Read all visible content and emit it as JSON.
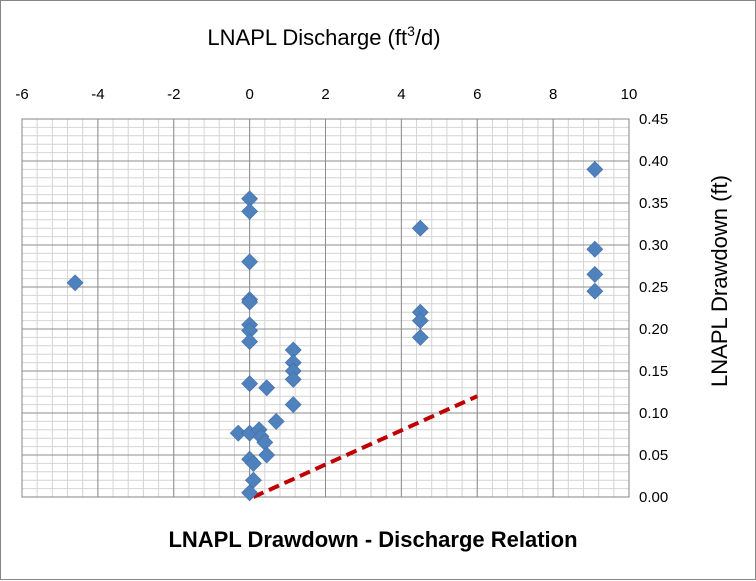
{
  "chart_data": {
    "type": "scatter",
    "title": "LNAPL Drawdown - Discharge Relation",
    "xlabel": "LNAPL Discharge (ft",
    "xlabel_sup": "3",
    "xlabel_tail": "/d)",
    "ylabel": "LNAPL Drawdown (ft)",
    "x_axis_position": "top",
    "y_axis_position": "right",
    "xlim": [
      -6,
      10
    ],
    "ylim": [
      0,
      0.45
    ],
    "x_ticks": [
      "-6",
      "-4",
      "-2",
      "0",
      "2",
      "4",
      "6",
      "8",
      "10"
    ],
    "y_ticks": [
      "0.00",
      "0.05",
      "0.10",
      "0.15",
      "0.20",
      "0.25",
      "0.30",
      "0.35",
      "0.40",
      "0.45"
    ],
    "grid": true,
    "legend": "none",
    "marker": "diamond",
    "marker_color": "#4f81bd",
    "trend_color": "#c00000",
    "series": [
      {
        "points": [
          [
            -4.6,
            0.255
          ],
          [
            0.0,
            0.355
          ],
          [
            0.0,
            0.34
          ],
          [
            0.0,
            0.28
          ],
          [
            0.0,
            0.235
          ],
          [
            0.0,
            0.232
          ],
          [
            0.0,
            0.205
          ],
          [
            0.0,
            0.198
          ],
          [
            0.0,
            0.185
          ],
          [
            0.0,
            0.135
          ],
          [
            -0.3,
            0.076
          ],
          [
            0.0,
            0.076
          ],
          [
            0.0,
            0.045
          ],
          [
            0.1,
            0.04
          ],
          [
            0.1,
            0.02
          ],
          [
            0.0,
            0.005
          ],
          [
            0.25,
            0.08
          ],
          [
            0.3,
            0.072
          ],
          [
            0.4,
            0.065
          ],
          [
            0.45,
            0.05
          ],
          [
            0.45,
            0.13
          ],
          [
            0.7,
            0.09
          ],
          [
            1.15,
            0.175
          ],
          [
            1.15,
            0.16
          ],
          [
            1.15,
            0.15
          ],
          [
            1.15,
            0.14
          ],
          [
            1.15,
            0.11
          ],
          [
            4.5,
            0.32
          ],
          [
            4.5,
            0.22
          ],
          [
            4.5,
            0.21
          ],
          [
            4.5,
            0.19
          ],
          [
            9.1,
            0.39
          ],
          [
            9.1,
            0.295
          ],
          [
            9.1,
            0.265
          ],
          [
            9.1,
            0.245
          ]
        ]
      }
    ],
    "trendline": {
      "style": "dashed",
      "points": [
        [
          0.1,
          0.0
        ],
        [
          6.0,
          0.12
        ]
      ]
    }
  }
}
